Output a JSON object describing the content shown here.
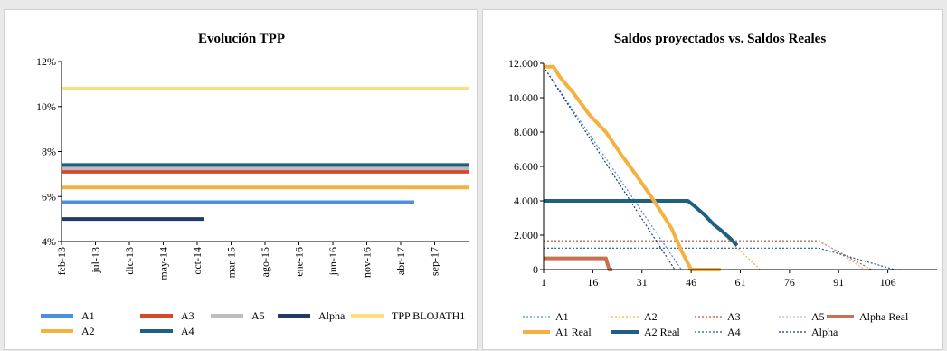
{
  "colors": {
    "A1": "#4a8fe0",
    "A2": "#f5b140",
    "A3": "#d9472a",
    "A4": "#1e5f82",
    "A5": "#bdbdbd",
    "Alpha": "#223a66",
    "TPP": "#f8df82",
    "AlphaReal": "#c87050"
  },
  "chart_data": [
    {
      "type": "line",
      "title": "Evolución TPP",
      "x_tick_labels": [
        "feb-13",
        "jul-13",
        "dic-13",
        "may-14",
        "oct-14",
        "mar-15",
        "ago-15",
        "ene-16",
        "jun-16",
        "nov-16",
        "abr-17",
        "sep-17"
      ],
      "y_tick_labels": [
        "4%",
        "6%",
        "8%",
        "10%",
        "12%"
      ],
      "ylim": [
        4,
        12
      ],
      "x_months": {
        "start": "feb-13",
        "end": "feb-18"
      },
      "series": [
        {
          "name": "A1",
          "value": 5.75,
          "x_start": "feb-13",
          "x_end": "jun-17"
        },
        {
          "name": "A3",
          "value": 7.1,
          "x_start": "feb-13",
          "x_end": "feb-18"
        },
        {
          "name": "A5",
          "value": 7.25,
          "x_start": "feb-13",
          "x_end": "feb-18"
        },
        {
          "name": "Alpha",
          "value": 5.0,
          "x_start": "feb-13",
          "x_end": "nov-14"
        },
        {
          "name": "TPP BLOJATH1",
          "value": 10.8,
          "x_start": "feb-13",
          "x_end": "feb-18"
        },
        {
          "name": "A2",
          "value": 6.4,
          "x_start": "feb-13",
          "x_end": "feb-18"
        },
        {
          "name": "A4",
          "value": 7.4,
          "x_start": "feb-13",
          "x_end": "feb-18"
        }
      ],
      "legend": {
        "placement": "bottom",
        "row1": [
          "A1",
          "A3",
          "A5",
          "Alpha",
          "TPP BLOJATH1"
        ],
        "row2": [
          "A2",
          "A4"
        ]
      }
    },
    {
      "type": "line",
      "title": "Saldos proyectados vs. Saldos Reales",
      "x_tick_labels": [
        "1",
        "16",
        "31",
        "46",
        "61",
        "76",
        "91",
        "106"
      ],
      "y_tick_labels": [
        "0",
        "2.000",
        "4.000",
        "6.000",
        "8.000",
        "10.000",
        "12.000"
      ],
      "xlim": [
        1,
        121
      ],
      "ylim": [
        0,
        12000
      ],
      "series": [
        {
          "name": "A1",
          "style": "dotted",
          "points": [
            [
              1,
              11800
            ],
            [
              43,
              0
            ]
          ]
        },
        {
          "name": "A2",
          "style": "dotted",
          "points": [
            [
              1,
              4000
            ],
            [
              45,
              4000
            ],
            [
              67,
              0
            ]
          ]
        },
        {
          "name": "A3",
          "style": "dotted",
          "points": [
            [
              1,
              1650
            ],
            [
              85,
              1650
            ],
            [
              101,
              0
            ]
          ]
        },
        {
          "name": "A5",
          "style": "dotted",
          "points": [
            [
              1,
              1700
            ],
            [
              85,
              1700
            ],
            [
              99,
              0
            ]
          ]
        },
        {
          "name": "Alpha Real",
          "style": "solid",
          "points": [
            [
              1,
              650
            ],
            [
              20,
              650
            ],
            [
              21,
              0
            ],
            [
              22,
              0
            ]
          ]
        },
        {
          "name": "A1 Real",
          "style": "solid",
          "points": [
            [
              1,
              11800
            ],
            [
              4,
              11800
            ],
            [
              6,
              11200
            ],
            [
              10,
              10300
            ],
            [
              15,
              9000
            ],
            [
              20,
              8000
            ],
            [
              25,
              6600
            ],
            [
              30,
              5300
            ],
            [
              35,
              3900
            ],
            [
              40,
              2400
            ],
            [
              43,
              1100
            ],
            [
              46,
              0
            ],
            [
              55,
              0
            ]
          ]
        },
        {
          "name": "A2 Real",
          "style": "solid",
          "points": [
            [
              1,
              4000
            ],
            [
              45,
              4000
            ],
            [
              47,
              3700
            ],
            [
              50,
              3200
            ],
            [
              53,
              2600
            ],
            [
              55,
              2300
            ],
            [
              58,
              1800
            ],
            [
              60,
              1400
            ]
          ]
        },
        {
          "name": "A4",
          "style": "dotted",
          "points": [
            [
              1,
              1250
            ],
            [
              85,
              1250
            ],
            [
              108,
              0
            ],
            [
              110,
              0
            ]
          ]
        },
        {
          "name": "Alpha",
          "style": "dotted",
          "points": [
            [
              1,
              11800
            ],
            [
              41,
              0
            ]
          ]
        }
      ],
      "legend": {
        "placement": "bottom",
        "row1": [
          "A1",
          "A2",
          "A3",
          "A5",
          "Alpha Real"
        ],
        "row2": [
          "A1 Real",
          "A2 Real",
          "A4",
          "Alpha"
        ]
      }
    }
  ]
}
